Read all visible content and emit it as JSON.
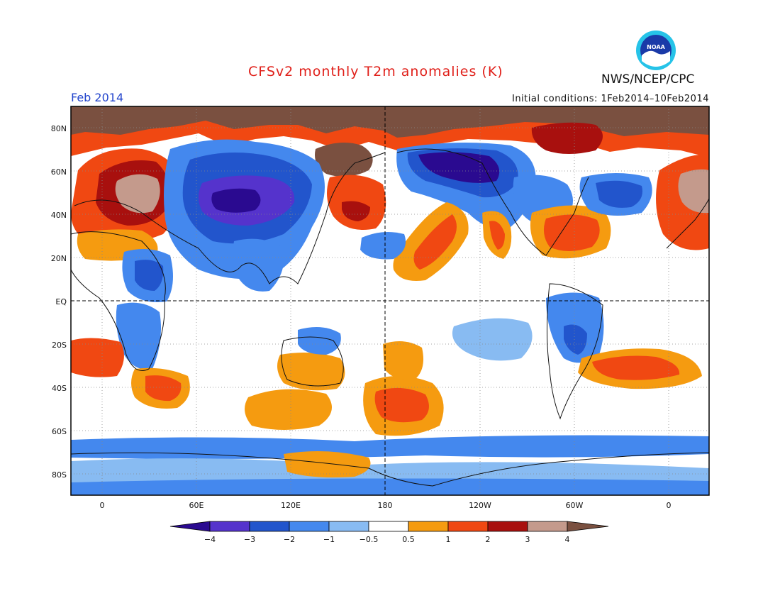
{
  "header": {
    "title": "CFSv2 monthly T2m anomalies (K)",
    "agency": "NWS/NCEP/CPC",
    "period": "Feb 2014",
    "initial_conditions": "Initial conditions: 1Feb2014–10Feb2014",
    "logo_text": "NOAA"
  },
  "map": {
    "lat_labels": [
      "80N",
      "60N",
      "40N",
      "20N",
      "EQ",
      "20S",
      "40S",
      "60S",
      "80S"
    ],
    "lon_labels": [
      "0",
      "60E",
      "120E",
      "180",
      "120W",
      "60W",
      "0"
    ]
  },
  "colorbar": {
    "labels": [
      "−4",
      "−3",
      "−2",
      "−1",
      "−0.5",
      "0.5",
      "1",
      "2",
      "3",
      "4"
    ],
    "colors": {
      "lt4": "#2a0a90",
      "m4_m3": "#5533cc",
      "m3_m2": "#2255cc",
      "m2_m1": "#4488ee",
      "m1_m05": "#88bbf2",
      "neutral": "#ffffff",
      "p05_1": "#f59b10",
      "p1_2": "#f04812",
      "p2_3": "#a8100e",
      "p3_4": "#c49a8c",
      "gt4": "#7a5040"
    }
  }
}
